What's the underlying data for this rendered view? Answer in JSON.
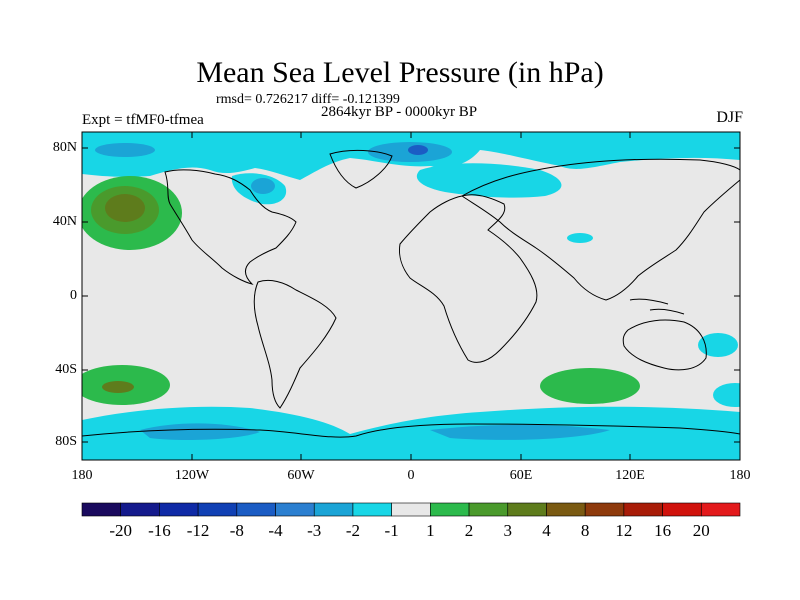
{
  "title": "Mean Sea Level Pressure (in hPa)",
  "stats": "rmsd= 0.726217 diff= -0.121399",
  "period": "2864kyr BP - 0000kyr BP",
  "experiment": "Expt = tfMF0-tfmea",
  "season": "DJF",
  "lat_labels": [
    "80N",
    "40N",
    "0",
    "40S",
    "80S"
  ],
  "lon_labels": [
    "180",
    "120W",
    "60W",
    "0",
    "60E",
    "120E",
    "180"
  ],
  "colorbar": {
    "labels": [
      "-20",
      "-16",
      "-12",
      "-8",
      "-4",
      "-3",
      "-2",
      "-1",
      "1",
      "2",
      "3",
      "4",
      "8",
      "12",
      "16",
      "20"
    ],
    "colors": [
      "#1a0a5e",
      "#141a8c",
      "#0f2aa6",
      "#1040b4",
      "#1b5cc4",
      "#2b7fd0",
      "#1ba4d6",
      "#18d6e6",
      "#e8e8e8",
      "#2cba4c",
      "#4a9a2c",
      "#5e7c1c",
      "#7a5a12",
      "#8e3a0c",
      "#a81c08",
      "#d0120c",
      "#e31a1c"
    ]
  }
}
